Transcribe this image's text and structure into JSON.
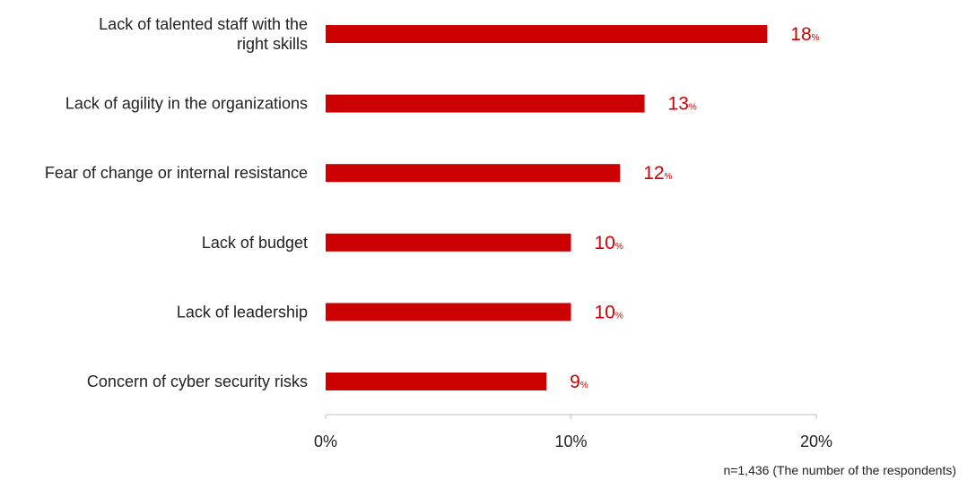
{
  "chart_data": {
    "type": "bar",
    "orientation": "horizontal",
    "categories": [
      [
        "Lack of talented staff with the",
        "right skills"
      ],
      [
        "Lack of agility in the organizations"
      ],
      [
        "Fear of change or internal resistance"
      ],
      [
        "Lack of budget"
      ],
      [
        "Lack of leadership"
      ],
      [
        "Concern of cyber security risks"
      ]
    ],
    "values": [
      18,
      13,
      12,
      10,
      10,
      9
    ],
    "value_labels": [
      "18",
      "13",
      "12",
      "10",
      "10",
      "9"
    ],
    "value_unit": "%",
    "x_ticks": [
      "0%",
      "10%",
      "20%"
    ],
    "xlim": [
      0,
      20
    ],
    "bar_color": "#cc0000",
    "label_color": "#cc0000",
    "grid": false,
    "note": "n=1,436 (The number of the respondents)"
  }
}
